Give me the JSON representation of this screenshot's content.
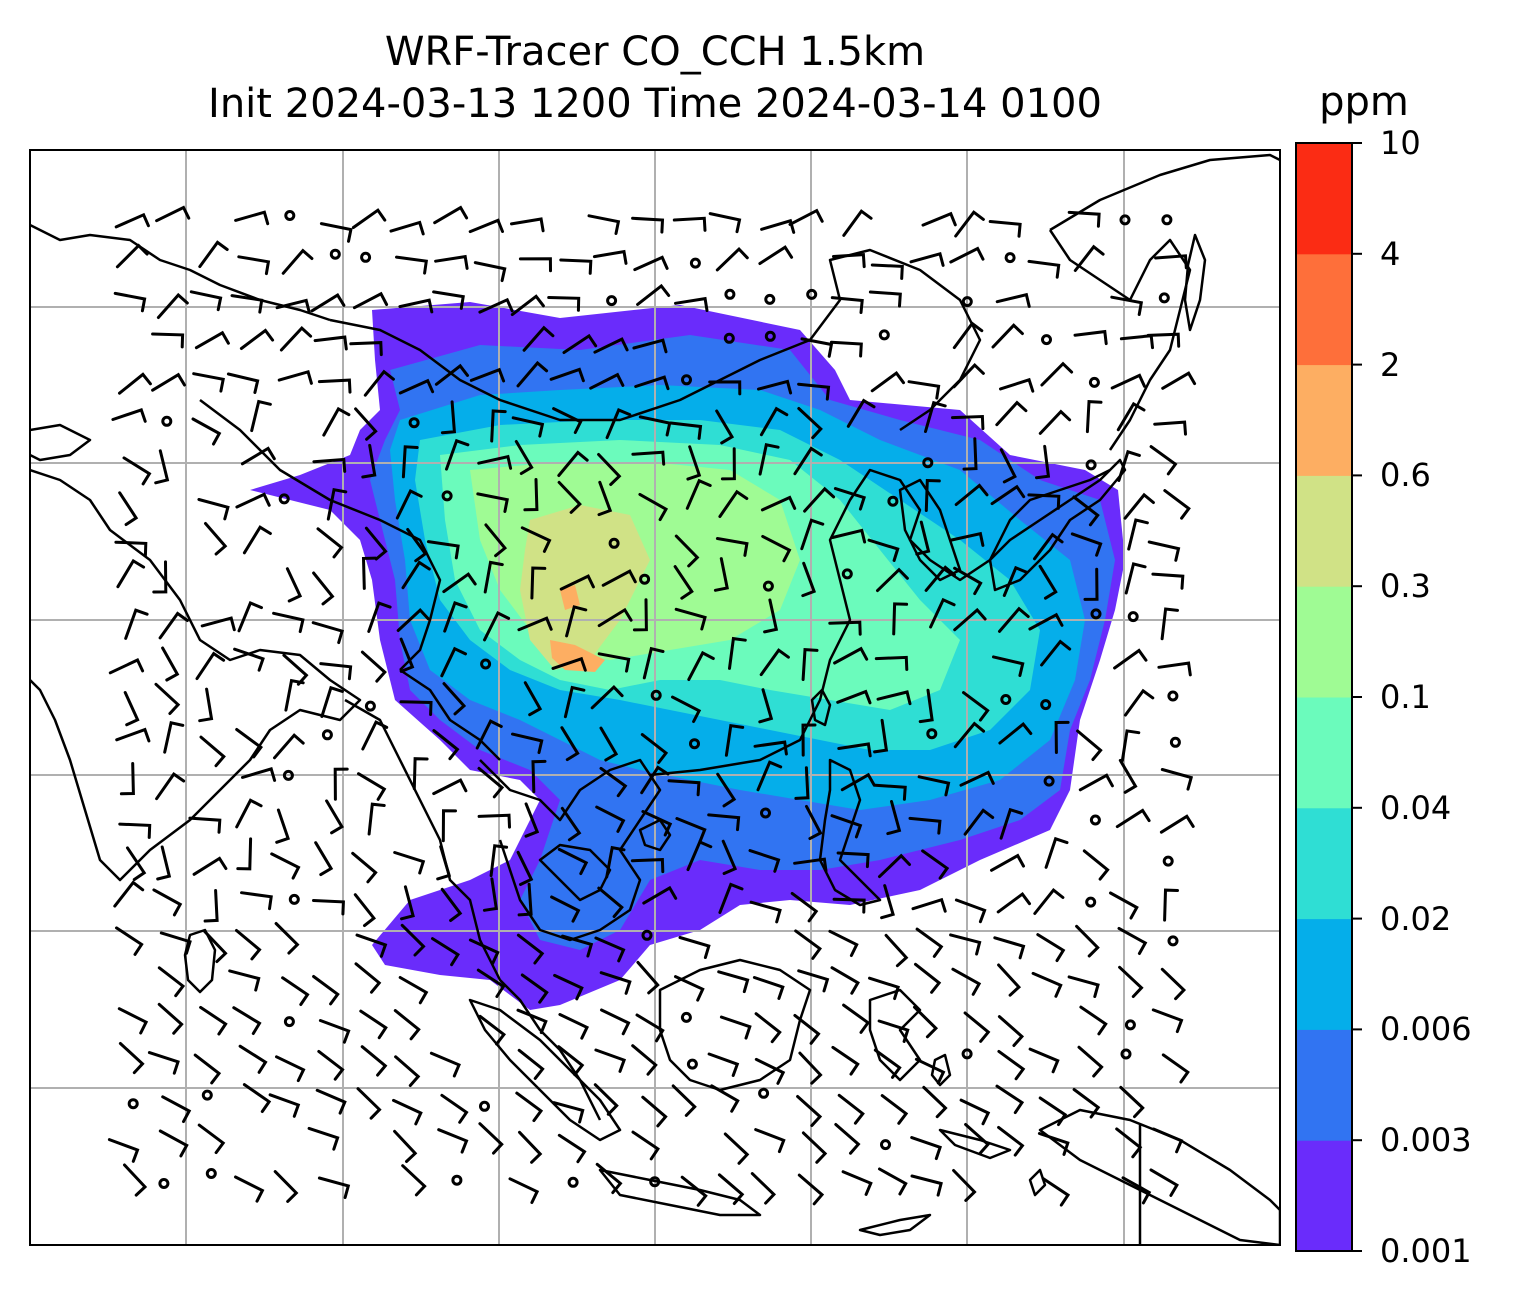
{
  "title": {
    "line1": "WRF-Tracer CO_CCH 1.5km",
    "line2": "Init 2024-03-13 1200 Time 2024-03-14 0100"
  },
  "colorbar": {
    "unit": "ppm",
    "levels": [
      "0.001",
      "0.003",
      "0.006",
      "0.02",
      "0.04",
      "0.1",
      "0.3",
      "0.6",
      "2",
      "4",
      "10"
    ],
    "colors": [
      "#6a2cfb",
      "#3174f2",
      "#05aeea",
      "#2fded4",
      "#6bfbbc",
      "#9ffb94",
      "#d0e286",
      "#fdae62",
      "#fe6f3a",
      "#fb2c14"
    ]
  },
  "map": {
    "gridlines": true,
    "background": "#ffffff",
    "coastline_color": "#000000",
    "gridline_color": "#b0b0b0"
  }
}
